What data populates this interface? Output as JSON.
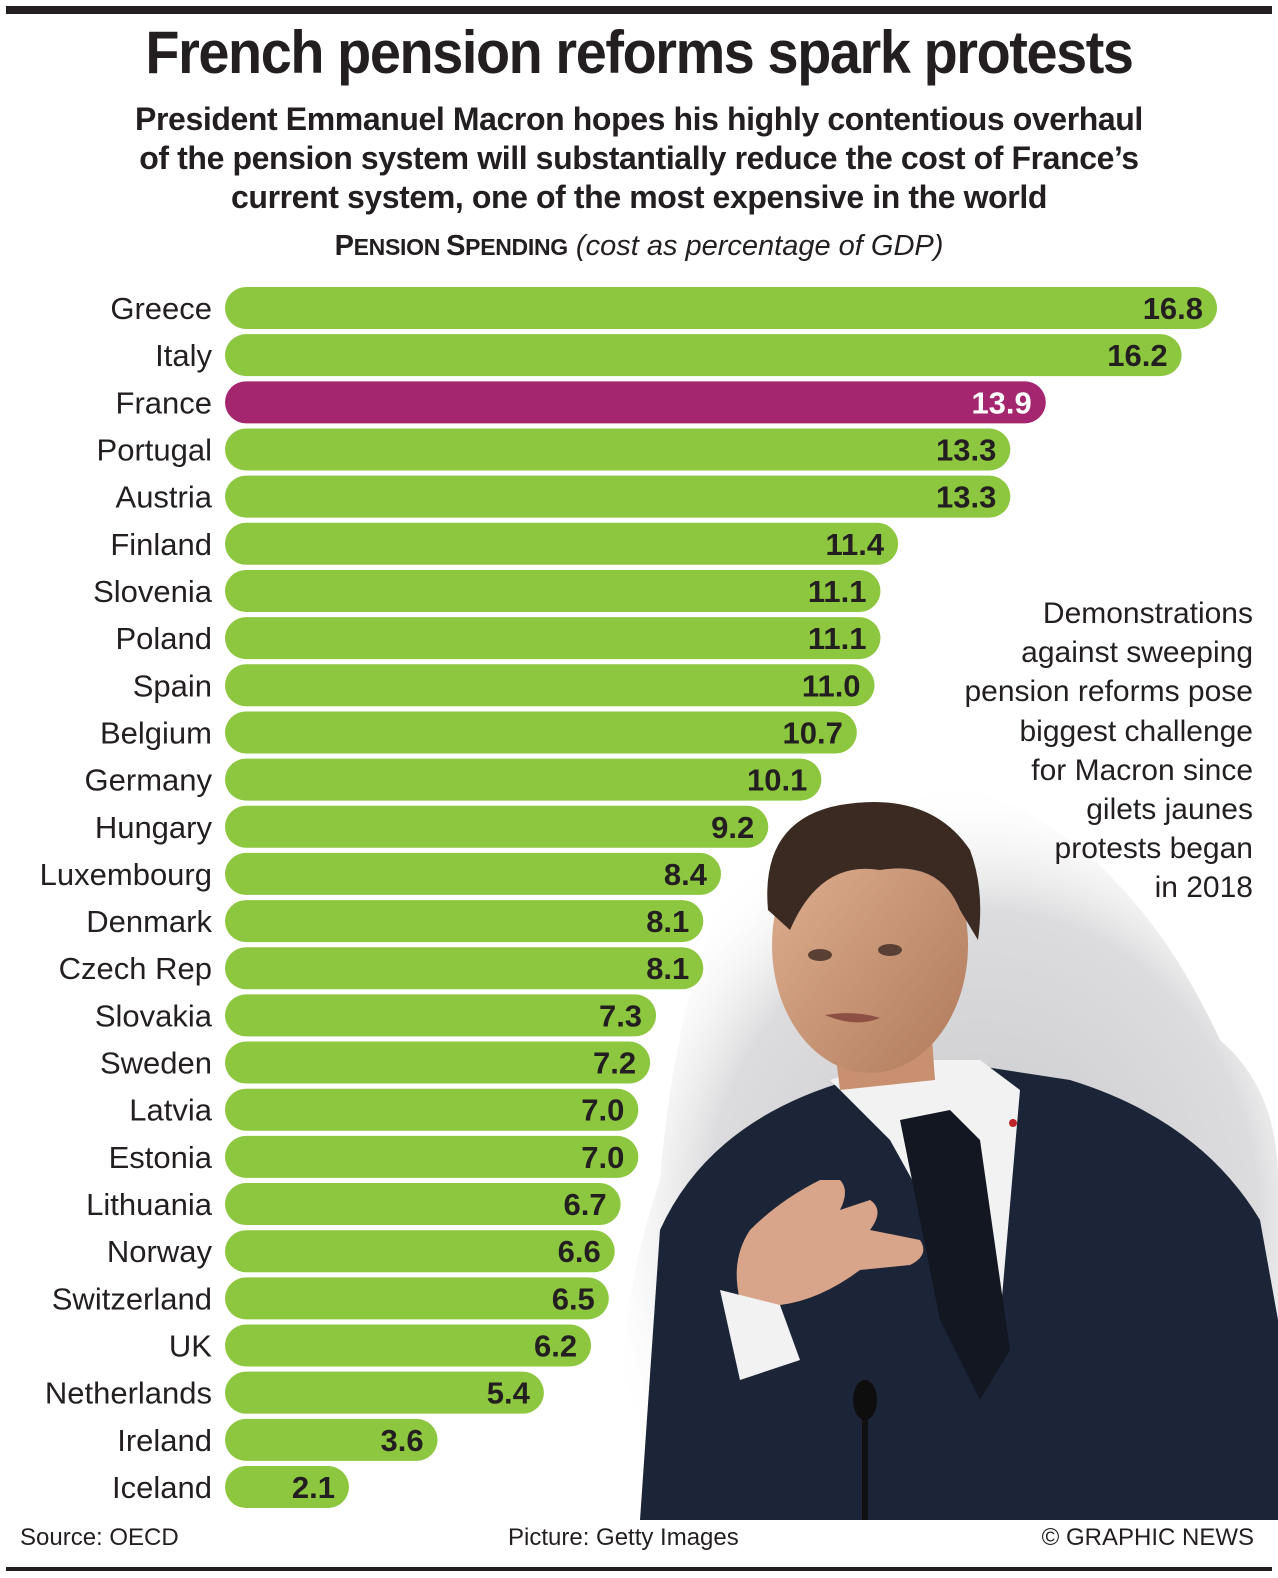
{
  "header": {
    "title": "French pension reforms spark protests",
    "subtitle_lines": [
      "President Emmanuel Macron hopes his highly contentious overhaul",
      "of the pension system will substantially reduce the cost of France’s",
      "current system, one of the most expensive in the world"
    ]
  },
  "chart_heading": {
    "title_first_P": "P",
    "title_rest1": "ENSION ",
    "title_first_S": "S",
    "title_rest2": "PENDING",
    "title_full": "Pension Spending",
    "units": "(cost as percentage of GDP)"
  },
  "annotation": {
    "lines": [
      "Demonstrations",
      "against sweeping",
      "pension reforms pose",
      "biggest challenge",
      "for Macron since",
      "gilets jaunes",
      "protests began",
      "in 2018"
    ]
  },
  "footer": {
    "source": "Source: OECD",
    "picture": "Picture: Getty Images",
    "copyright": "© GRAPHIC NEWS"
  },
  "photo": {
    "subject": "Emmanuel Macron speaking at podium",
    "credit": "Getty Images"
  },
  "colors": {
    "bar_default": "#8dc63f",
    "bar_highlight": "#a3266e",
    "label_default": "#231f20",
    "label_highlight": "#ffffff",
    "text": "#231f20"
  },
  "chart_data": {
    "type": "bar",
    "orientation": "horizontal",
    "title": "Pension Spending",
    "subtitle": "(cost as percentage of GDP)",
    "xlabel": "",
    "ylabel": "",
    "xlim": [
      0,
      17
    ],
    "grid": false,
    "legend": "none",
    "highlight": "France",
    "categories": [
      "Greece",
      "Italy",
      "France",
      "Portugal",
      "Austria",
      "Finland",
      "Slovenia",
      "Poland",
      "Spain",
      "Belgium",
      "Germany",
      "Hungary",
      "Luxembourg",
      "Denmark",
      "Czech Rep",
      "Slovakia",
      "Sweden",
      "Latvia",
      "Estonia",
      "Lithuania",
      "Norway",
      "Switzerland",
      "UK",
      "Netherlands",
      "Ireland",
      "Iceland"
    ],
    "values": [
      16.8,
      16.2,
      13.9,
      13.3,
      13.3,
      11.4,
      11.1,
      11.1,
      11.0,
      10.7,
      10.1,
      9.2,
      8.4,
      8.1,
      8.1,
      7.3,
      7.2,
      7.0,
      7.0,
      6.7,
      6.6,
      6.5,
      6.2,
      5.4,
      3.6,
      2.1
    ],
    "value_labels": [
      "16.8",
      "16.2",
      "13.9",
      "13.3",
      "13.3",
      "11.4",
      "11.1",
      "11.1",
      "11.0",
      "10.7",
      "10.1",
      "9.2",
      "8.4",
      "8.1",
      "8.1",
      "7.3",
      "7.2",
      "7.0",
      "7.0",
      "6.7",
      "6.6",
      "6.5",
      "6.2",
      "5.4",
      "3.6",
      "2.1"
    ]
  }
}
